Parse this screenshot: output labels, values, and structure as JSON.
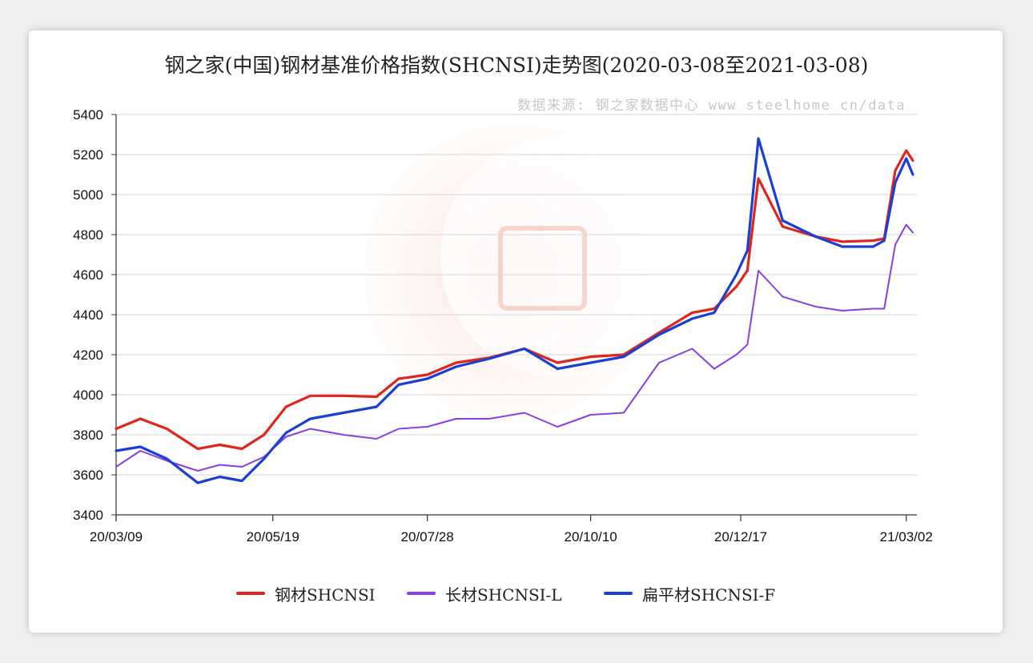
{
  "chart_data": {
    "type": "line",
    "title": "钢之家(中国)钢材基准价格指数(SHCNSI)走势图(2020-03-08至2021-03-08)",
    "source": "数据来源: 钢之家数据中心 www steelhome cn/data",
    "x_tick_labels": [
      "20/03/09",
      "20/05/19",
      "20/07/28",
      "20/10/10",
      "20/12/17",
      "21/03/02"
    ],
    "x": [
      "2020-03-09",
      "2020-03-20",
      "2020-04-01",
      "2020-04-15",
      "2020-04-25",
      "2020-05-05",
      "2020-05-15",
      "2020-05-25",
      "2020-06-05",
      "2020-06-20",
      "2020-07-05",
      "2020-07-15",
      "2020-07-28",
      "2020-08-10",
      "2020-08-25",
      "2020-09-10",
      "2020-09-25",
      "2020-10-10",
      "2020-10-25",
      "2020-11-10",
      "2020-11-25",
      "2020-12-05",
      "2020-12-15",
      "2020-12-20",
      "2020-12-25",
      "2021-01-05",
      "2021-01-20",
      "2021-02-01",
      "2021-02-15",
      "2021-02-20",
      "2021-02-25",
      "2021-03-02",
      "2021-03-05"
    ],
    "series": [
      {
        "name": "钢材SHCNSI",
        "color": "#e0261c",
        "values": [
          3830,
          3880,
          3830,
          3730,
          3750,
          3730,
          3800,
          3940,
          3995,
          3995,
          3990,
          4080,
          4100,
          4160,
          4185,
          4230,
          4160,
          4190,
          4200,
          4310,
          4410,
          4430,
          4540,
          4620,
          5080,
          4840,
          4790,
          4765,
          4770,
          4780,
          5120,
          5220,
          5170
        ]
      },
      {
        "name": "长材SHCNSI-L",
        "color": "#8a3fe0",
        "values": [
          3640,
          3720,
          3670,
          3620,
          3650,
          3640,
          3690,
          3790,
          3830,
          3800,
          3780,
          3830,
          3840,
          3880,
          3880,
          3910,
          3840,
          3900,
          3910,
          4160,
          4230,
          4130,
          4200,
          4250,
          4620,
          4490,
          4440,
          4420,
          4430,
          4430,
          4750,
          4850,
          4810
        ]
      },
      {
        "name": "扁平材SHCNSI-F",
        "color": "#1a3fd4",
        "values": [
          3720,
          3740,
          3680,
          3560,
          3590,
          3570,
          3680,
          3810,
          3880,
          3910,
          3940,
          4050,
          4080,
          4140,
          4180,
          4230,
          4130,
          4160,
          4190,
          4300,
          4380,
          4410,
          4600,
          4720,
          5280,
          4870,
          4790,
          4740,
          4740,
          4770,
          5060,
          5180,
          5100
        ]
      }
    ],
    "ylim": [
      3400,
      5400
    ],
    "y_ticks": [
      3400,
      3600,
      3800,
      4000,
      4200,
      4400,
      4600,
      4800,
      5000,
      5200,
      5400
    ],
    "grid": true,
    "legend": "bottom"
  }
}
